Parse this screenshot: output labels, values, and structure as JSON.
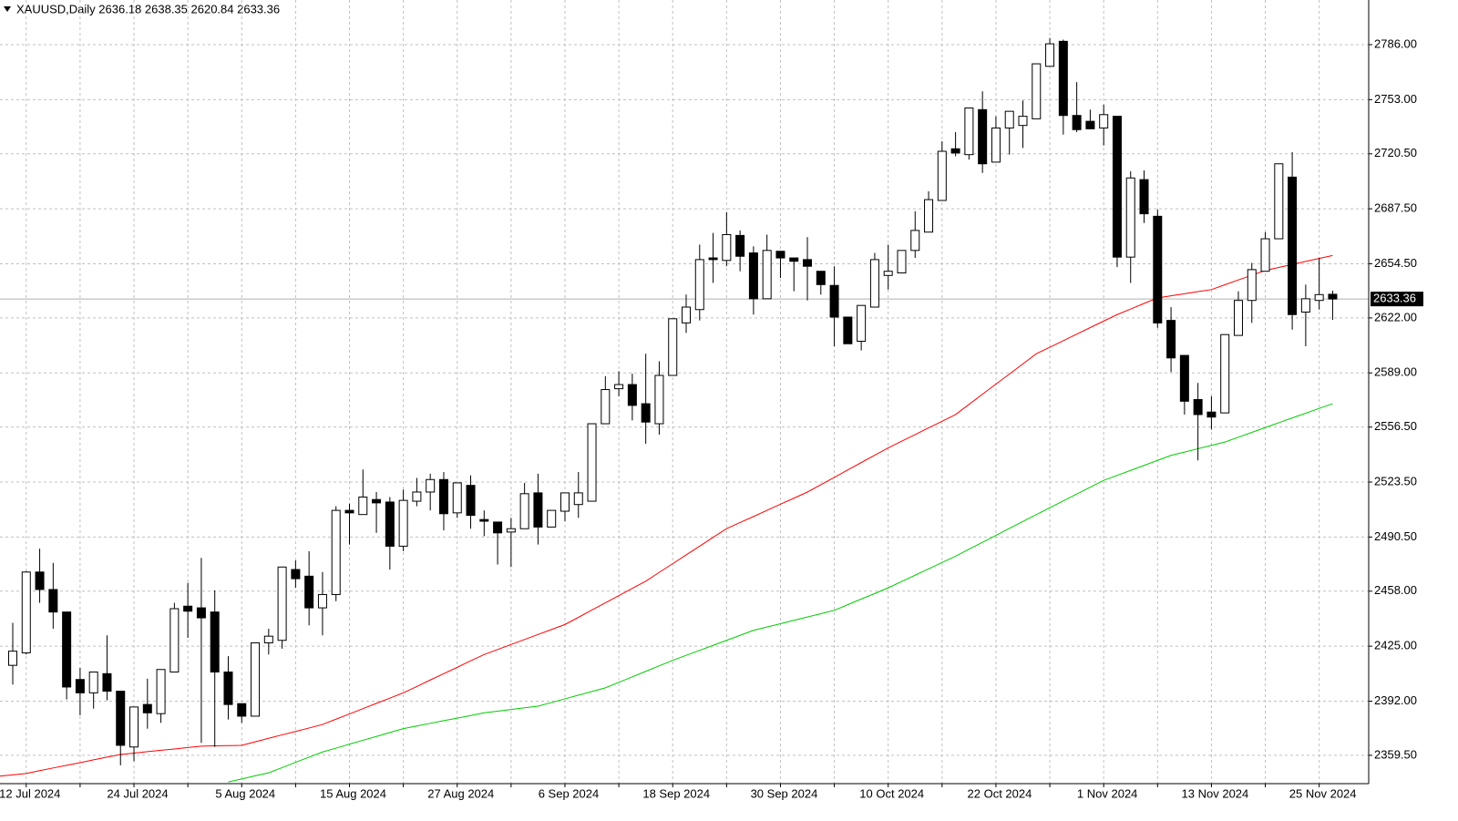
{
  "chart_data": {
    "type": "candlestick",
    "title": "XAUUSD,Daily  2636.18 2638.35 2620.84 2633.36",
    "categories": [
      null,
      "12 Jul 2024",
      null,
      null,
      null,
      null,
      null,
      null,
      null,
      "24 Jul 2024",
      null,
      null,
      null,
      null,
      null,
      null,
      null,
      "5 Aug 2024",
      null,
      null,
      null,
      null,
      null,
      null,
      null,
      "15 Aug 2024",
      null,
      null,
      null,
      null,
      null,
      null,
      null,
      "27 Aug 2024",
      null,
      null,
      null,
      null,
      null,
      null,
      null,
      "6 Sep 2024",
      null,
      null,
      null,
      null,
      null,
      null,
      null,
      "18 Sep 2024",
      null,
      null,
      null,
      null,
      null,
      null,
      null,
      "30 Sep 2024",
      null,
      null,
      null,
      null,
      null,
      null,
      null,
      "10 Oct 2024",
      null,
      null,
      null,
      null,
      null,
      null,
      null,
      "22 Oct 2024",
      null,
      null,
      null,
      null,
      null,
      null,
      null,
      "1 Nov 2024",
      null,
      null,
      null,
      null,
      null,
      null,
      null,
      "13 Nov 2024",
      null,
      null,
      null,
      null,
      null,
      null,
      null,
      "25 Nov 2024",
      null
    ],
    "open": [
      2413.5,
      2421,
      2469.5,
      2459,
      2445.5,
      2405,
      2397,
      2408.5,
      2398,
      2364.5,
      2390,
      2384.5,
      2409.5,
      2449,
      2448,
      2445.5,
      2409.5,
      2390.5,
      2383,
      2427,
      2428.5,
      2471,
      2467,
      2448,
      2456,
      2506.5,
      2504,
      2513,
      2511.5,
      2485,
      2512,
      2517.5,
      2525,
      2505,
      2521.5,
      2501,
      2499.5,
      2493.5,
      2495.5,
      2517,
      2496.5,
      2506,
      2510,
      2512,
      2558.5,
      2579.5,
      2582,
      2570.5,
      2558.5,
      2587.5,
      2619,
      2627,
      2658,
      2656.5,
      2671.5,
      2661,
      2633.5,
      2662,
      2658,
      2657,
      2650,
      2641.5,
      2622.5,
      2608,
      2628.5,
      2647.5,
      2649,
      2662.5,
      2673.5,
      2692.5,
      2723.5,
      2720,
      2747,
      2715.5,
      2736,
      2737.5,
      2741.5,
      2773,
      2788,
      2743.5,
      2740,
      2736,
      2743,
      2658.5,
      2705,
      2683,
      2620.5,
      2599.5,
      2573,
      2565.5,
      2565,
      2611.5,
      2632.5,
      2650,
      2669.5,
      2706.5,
      2625.5,
      2632.5,
      2636.18
    ],
    "high": [
      2439,
      2470,
      2483.5,
      2475,
      2445.5,
      2412,
      2409.5,
      2431.5,
      2398,
      2388.5,
      2405.5,
      2411,
      2451,
      2463,
      2478,
      2458.5,
      2419,
      2390.5,
      2427,
      2435.5,
      2472.5,
      2476.5,
      2482,
      2469.5,
      2509,
      2510.5,
      2531,
      2517.5,
      2514.5,
      2519,
      2526,
      2528.5,
      2529.5,
      2523,
      2527.5,
      2506.5,
      2499.5,
      2502,
      2523,
      2528.5,
      2506.5,
      2517,
      2529.5,
      2558.5,
      2587,
      2590,
      2588.5,
      2600.5,
      2596,
      2621.5,
      2636,
      2666,
      2673,
      2685.5,
      2674.5,
      2665,
      2672,
      2662,
      2658,
      2670.5,
      2650,
      2653,
      2622.5,
      2629.5,
      2661,
      2666,
      2662.5,
      2686,
      2698,
      2728,
      2733.5,
      2748,
      2758,
      2743,
      2746,
      2752.5,
      2774.5,
      2790,
      2789,
      2763.5,
      2747,
      2750,
      2743,
      2710,
      2710.5,
      2687,
      2628.5,
      2599.5,
      2583,
      2575,
      2612,
      2638,
      2655,
      2673.5,
      2714.5,
      2721.5,
      2642,
      2658,
      2638.35
    ],
    "low": [
      2402,
      2420,
      2451,
      2435.5,
      2393,
      2383.5,
      2387.5,
      2392.5,
      2353.5,
      2356,
      2375.5,
      2379,
      2409.5,
      2430,
      2367,
      2364.5,
      2381,
      2379,
      2383,
      2420,
      2423.5,
      2460,
      2437.5,
      2431.5,
      2452,
      2486,
      2504,
      2493,
      2471,
      2482,
      2509,
      2506.5,
      2494.5,
      2502,
      2495.5,
      2491,
      2474,
      2472.5,
      2495.5,
      2486,
      2496.5,
      2500,
      2502,
      2512,
      2558.5,
      2575,
      2560.5,
      2546.5,
      2552,
      2587.5,
      2613,
      2620.5,
      2643,
      2653,
      2650,
      2624,
      2633.5,
      2646,
      2638,
      2632.5,
      2636,
      2605,
      2606.5,
      2602.5,
      2628.5,
      2639,
      2649,
      2658,
      2673.5,
      2692.5,
      2719,
      2717,
      2709,
      2715.5,
      2720,
      2724,
      2741.5,
      2773,
      2732,
      2733.5,
      2735.5,
      2725.5,
      2652.5,
      2643,
      2679,
      2616,
      2589.5,
      2564,
      2536.5,
      2555,
      2565,
      2611.5,
      2619,
      2650,
      2669.5,
      2615,
      2605,
      2627,
      2620.84
    ],
    "close": [
      2422,
      2469.5,
      2459,
      2445.5,
      2400.5,
      2397,
      2409.5,
      2398,
      2365.5,
      2388.5,
      2385,
      2411,
      2447.5,
      2446,
      2442,
      2409.5,
      2390,
      2383,
      2427,
      2431,
      2472.5,
      2465.5,
      2448,
      2456,
      2506.5,
      2505,
      2514.5,
      2511,
      2485,
      2512.5,
      2517.5,
      2525,
      2504.5,
      2523,
      2503.5,
      2500,
      2493,
      2495.5,
      2516.5,
      2496.5,
      2506.5,
      2517,
      2517,
      2558.5,
      2579,
      2582,
      2569.5,
      2559.5,
      2587.5,
      2621.5,
      2628.5,
      2657,
      2657,
      2672,
      2659,
      2633.5,
      2662.5,
      2658,
      2656,
      2653,
      2642,
      2622.5,
      2606.5,
      2629.5,
      2657,
      2650,
      2662.5,
      2674.5,
      2693,
      2722,
      2721,
      2748,
      2714.5,
      2736,
      2746,
      2743,
      2774.5,
      2786.5,
      2743.5,
      2735,
      2735.5,
      2744,
      2658.5,
      2706,
      2684.5,
      2619,
      2598,
      2572,
      2564,
      2562.5,
      2612,
      2632.5,
      2651,
      2669.5,
      2714.5,
      2624,
      2633.5,
      2636,
      2633.36
    ],
    "lines": [
      {
        "color": "#ff0000",
        "values": [
          2347,
          2348.6,
          2350.3,
          2351.9,
          2353.5,
          2355.1,
          2356.8,
          2358.4,
          2360,
          2360.8,
          2361.7,
          2362.5,
          2363.3,
          2364.2,
          2365,
          2365.2,
          2365.3,
          2365.5,
          2367.6,
          2369.7,
          2371.8,
          2373.8,
          2375.9,
          2378,
          2381.2,
          2384.3,
          2387.5,
          2390.7,
          2393.8,
          2397,
          2400.8,
          2404.7,
          2408.5,
          2412.3,
          2416.2,
          2420,
          2423,
          2426,
          2429,
          2432,
          2435,
          2438,
          2442.3,
          2446.7,
          2451,
          2455.3,
          2459.7,
          2464,
          2469.3,
          2474.5,
          2479.8,
          2485,
          2490.3,
          2495.5,
          2499.2,
          2502.8,
          2506.5,
          2510.2,
          2513.8,
          2517.5,
          2521.9,
          2526.3,
          2530.8,
          2535.2,
          2539.6,
          2544,
          2548,
          2552,
          2556,
          2560,
          2564,
          2570.1,
          2576.2,
          2582.3,
          2588.3,
          2594.4,
          2600.5,
          2604.4,
          2608.3,
          2612.3,
          2616.2,
          2620.1,
          2624,
          2627.3,
          2630.7,
          2634,
          2635.3,
          2636.5,
          2637.8,
          2639,
          2641.9,
          2644.8,
          2647.6,
          2650.5,
          2652.3,
          2654.1,
          2655.9,
          2657.7,
          2659.5
        ]
      },
      {
        "color": "#00cc00",
        "values": [
          null,
          null,
          null,
          null,
          null,
          null,
          null,
          null,
          null,
          null,
          null,
          null,
          null,
          null,
          null,
          null,
          2343.5,
          2345.3,
          2347.2,
          2349,
          2352.1,
          2355.3,
          2358.4,
          2361.5,
          2363.8,
          2366.2,
          2368.5,
          2370.8,
          2373.2,
          2375.5,
          2377.1,
          2378.7,
          2380.3,
          2381.8,
          2383.4,
          2385,
          2386,
          2387,
          2388,
          2389,
          2391.2,
          2393.4,
          2395.6,
          2397.8,
          2400,
          2403.3,
          2406.6,
          2409.9,
          2413.2,
          2416.5,
          2419.5,
          2422.5,
          2425.5,
          2428.5,
          2431.5,
          2434.5,
          2436.5,
          2438.5,
          2440.5,
          2442.5,
          2444.5,
          2446.5,
          2449.9,
          2453.3,
          2456.6,
          2460,
          2463.8,
          2467.6,
          2471.4,
          2475.2,
          2479,
          2483.2,
          2487.3,
          2491.5,
          2495.7,
          2499.8,
          2504,
          2508.1,
          2512.2,
          2516.3,
          2520.4,
          2524.5,
          2527.5,
          2530.5,
          2533.5,
          2536.5,
          2539.5,
          2541.5,
          2543.5,
          2545.5,
          2547.5,
          2550.4,
          2553.3,
          2556.2,
          2559.1,
          2562,
          2564.8,
          2567.7,
          2570.5
        ]
      }
    ],
    "last_price": 2633.36,
    "ylim": [
      2342.5,
      2812.8
    ],
    "yticks": [
      {
        "value": 2359.5,
        "label": "2359.50"
      },
      {
        "value": 2392,
        "label": "2392.00"
      },
      {
        "value": 2425,
        "label": "2425.00"
      },
      {
        "value": 2458,
        "label": "2458.00"
      },
      {
        "value": 2490.5,
        "label": "2490.50"
      },
      {
        "value": 2523.5,
        "label": "2523.50"
      },
      {
        "value": 2556.5,
        "label": "2556.50"
      },
      {
        "value": 2589,
        "label": "2589.00"
      },
      {
        "value": 2622,
        "label": "2622.00"
      },
      {
        "value": 2654.5,
        "label": "2654.50"
      },
      {
        "value": 2687.5,
        "label": "2687.50"
      },
      {
        "value": 2720.5,
        "label": "2720.50"
      },
      {
        "value": 2753,
        "label": "2753.00"
      },
      {
        "value": 2786,
        "label": "2786.00"
      }
    ],
    "grid": true
  }
}
